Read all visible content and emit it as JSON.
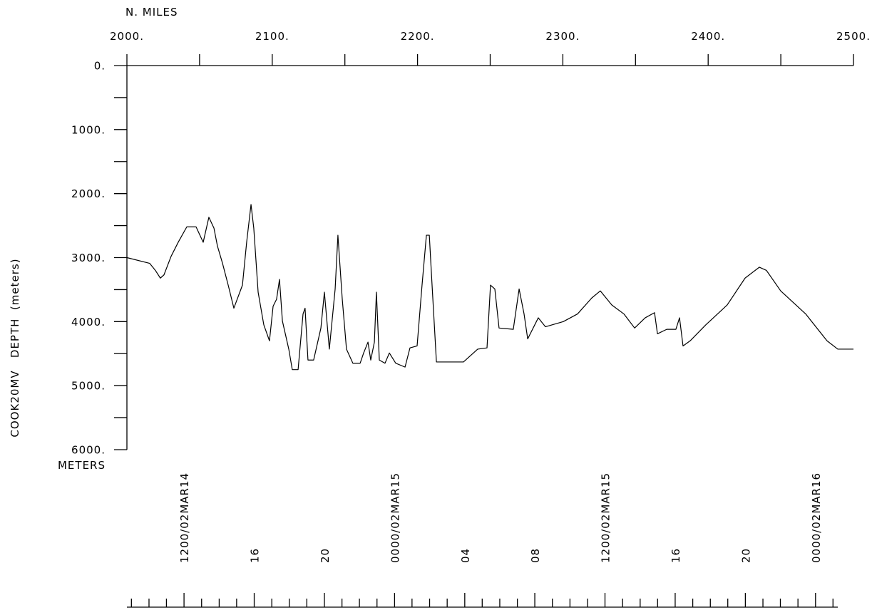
{
  "chart_data": {
    "type": "line",
    "x_title": "N. MILES",
    "y_units": "METERS",
    "y_title": "COOK20MV   DEPTH  (meters)",
    "color": "#000000",
    "xlim": [
      2000,
      2500
    ],
    "xticks": [
      {
        "value": 2000,
        "label": "2000."
      },
      {
        "value": 2100,
        "label": "2100."
      },
      {
        "value": 2200,
        "label": "2200."
      },
      {
        "value": 2300,
        "label": "2300."
      },
      {
        "value": 2400,
        "label": "2400."
      },
      {
        "value": 2500,
        "label": "2500."
      }
    ],
    "x_minor_ticks": [
      2050,
      2150,
      2250,
      2350,
      2450
    ],
    "ylim": [
      6000,
      0
    ],
    "yticks": [
      {
        "value": 0,
        "label": "0."
      },
      {
        "value": 1000,
        "label": "1000."
      },
      {
        "value": 2000,
        "label": "2000."
      },
      {
        "value": 3000,
        "label": "3000."
      },
      {
        "value": 4000,
        "label": "4000."
      },
      {
        "value": 5000,
        "label": "5000."
      },
      {
        "value": 6000,
        "label": "6000."
      }
    ],
    "y_minor_ticks": [
      500,
      1500,
      2500,
      3500,
      4500,
      5500
    ],
    "time_ticks": [
      {
        "value": 2039.3,
        "label": "1200/02MAR14"
      },
      {
        "value": 2087.6,
        "label": "16"
      },
      {
        "value": 2135.9,
        "label": "20"
      },
      {
        "value": 2184.2,
        "label": "0000/02MAR15"
      },
      {
        "value": 2232.5,
        "label": "04"
      },
      {
        "value": 2280.7,
        "label": "08"
      },
      {
        "value": 2329.0,
        "label": "1200/02MAR15"
      },
      {
        "value": 2377.3,
        "label": "16"
      },
      {
        "value": 2425.6,
        "label": "20"
      },
      {
        "value": 2473.9,
        "label": "0000/02MAR16"
      }
    ],
    "time_minor_ticks": [
      2003.1,
      2015.2,
      2027.2,
      2051.4,
      2063.5,
      2075.5,
      2099.7,
      2111.7,
      2123.8,
      2148.0,
      2160.0,
      2172.1,
      2196.2,
      2208.3,
      2220.4,
      2244.5,
      2256.6,
      2268.7,
      2292.8,
      2304.9,
      2317.0,
      2341.1,
      2353.2,
      2365.2,
      2389.4,
      2401.5,
      2413.5,
      2437.7,
      2449.7,
      2461.8,
      2485.9
    ],
    "x": [
      2000,
      2015.7,
      2019.6,
      2023,
      2025.5,
      2030.4,
      2035.3,
      2041.2,
      2047.6,
      2052.5,
      2056.4,
      2059.9,
      2062.3,
      2065.8,
      2069.7,
      2073.6,
      2079.5,
      2082.4,
      2085.4,
      2087.3,
      2090.3,
      2094.2,
      2098.1,
      2100.6,
      2103,
      2105,
      2107,
      2111.4,
      2113.8,
      2117.8,
      2121.2,
      2122.6,
      2124.6,
      2128.5,
      2133.5,
      2135.9,
      2139.3,
      2143.3,
      2145.2,
      2148.2,
      2151.1,
      2155.5,
      2160.5,
      2162.9,
      2165.9,
      2167.8,
      2170.3,
      2171.7,
      2173.7,
      2177.6,
      2180.6,
      2185,
      2191.4,
      2194.8,
      2199.7,
      2203.1,
      2206.1,
      2208.1,
      2210,
      2213,
      2231.6,
      2241.4,
      2247.8,
      2250.2,
      2253.2,
      2256.1,
      2265.9,
      2269.9,
      2273.3,
      2275.8,
      2283.1,
      2288,
      2300.3,
      2310.1,
      2319.9,
      2325.8,
      2333.7,
      2342,
      2349.4,
      2356.7,
      2363.1,
      2365.1,
      2371.5,
      2377.8,
      2380.3,
      2382.7,
      2387.6,
      2398.4,
      2413.1,
      2425.4,
      2435.2,
      2440.1,
      2449.9,
      2467.1,
      2481.8,
      2489.2,
      2500
    ],
    "values": [
      3000,
      3090,
      3200,
      3320,
      3270,
      2980,
      2760,
      2520,
      2520,
      2760,
      2370,
      2540,
      2820,
      3090,
      3430,
      3790,
      3430,
      2760,
      2170,
      2540,
      3540,
      4050,
      4300,
      3760,
      3650,
      3340,
      3990,
      4430,
      4750,
      4750,
      3880,
      3790,
      4600,
      4600,
      4100,
      3540,
      4430,
      3490,
      2650,
      3650,
      4430,
      4650,
      4650,
      4490,
      4320,
      4600,
      4320,
      3540,
      4600,
      4650,
      4490,
      4650,
      4710,
      4410,
      4380,
      3430,
      2650,
      2650,
      3430,
      4630,
      4630,
      4430,
      4410,
      3430,
      3490,
      4100,
      4120,
      3490,
      3880,
      4270,
      3940,
      4080,
      4000,
      3880,
      3630,
      3520,
      3740,
      3880,
      4100,
      3940,
      3860,
      4190,
      4120,
      4120,
      3940,
      4380,
      4300,
      4050,
      3740,
      3320,
      3150,
      3200,
      3520,
      3880,
      4300,
      4430,
      4430
    ]
  }
}
